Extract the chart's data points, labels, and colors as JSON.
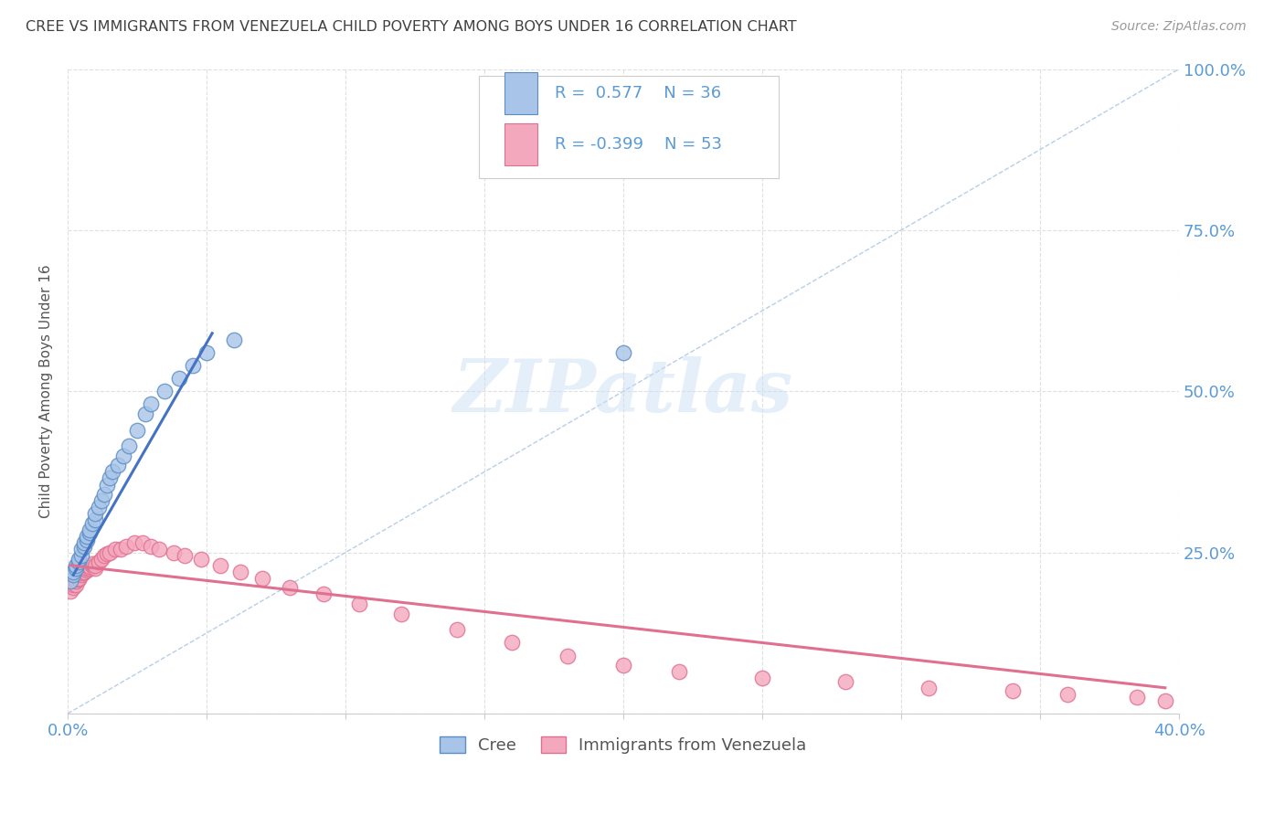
{
  "title": "CREE VS IMMIGRANTS FROM VENEZUELA CHILD POVERTY AMONG BOYS UNDER 16 CORRELATION CHART",
  "source": "Source: ZipAtlas.com",
  "ylabel": "Child Poverty Among Boys Under 16",
  "xlim": [
    0.0,
    0.4
  ],
  "ylim": [
    0.0,
    1.0
  ],
  "legend_label1": "Cree",
  "legend_label2": "Immigrants from Venezuela",
  "legend_R1": "R =  0.577",
  "legend_N1": "N = 36",
  "legend_R2": "R = -0.399",
  "legend_N2": "N = 53",
  "color_cree_fill": "#a8c4e8",
  "color_cree_edge": "#5b8ec4",
  "color_venezuela_fill": "#f4a8be",
  "color_venezuela_edge": "#e07090",
  "color_line_cree": "#4472c4",
  "color_line_venezuela": "#e07090",
  "color_diagonal": "#b0c8e8",
  "color_right_ticks": "#5b9bd5",
  "color_bottom_ticks": "#5b9bd5",
  "color_title": "#404040",
  "watermark_text": "ZIPatlas",
  "watermark_color": "#cce0f5",
  "cree_x": [
    0.001,
    0.002,
    0.002,
    0.003,
    0.003,
    0.004,
    0.004,
    0.005,
    0.005,
    0.006,
    0.006,
    0.007,
    0.007,
    0.008,
    0.008,
    0.009,
    0.01,
    0.01,
    0.011,
    0.012,
    0.013,
    0.014,
    0.015,
    0.016,
    0.018,
    0.02,
    0.022,
    0.025,
    0.028,
    0.03,
    0.035,
    0.04,
    0.045,
    0.05,
    0.06,
    0.2
  ],
  "cree_y": [
    0.205,
    0.215,
    0.22,
    0.225,
    0.23,
    0.235,
    0.24,
    0.245,
    0.255,
    0.26,
    0.265,
    0.27,
    0.275,
    0.28,
    0.285,
    0.295,
    0.3,
    0.31,
    0.32,
    0.33,
    0.34,
    0.355,
    0.365,
    0.375,
    0.385,
    0.4,
    0.415,
    0.44,
    0.465,
    0.48,
    0.5,
    0.52,
    0.54,
    0.56,
    0.58,
    0.56
  ],
  "cree_line_x": [
    0.002,
    0.052
  ],
  "cree_line_y": [
    0.215,
    0.59
  ],
  "venezuela_x": [
    0.001,
    0.002,
    0.002,
    0.003,
    0.003,
    0.004,
    0.004,
    0.005,
    0.005,
    0.006,
    0.006,
    0.007,
    0.007,
    0.008,
    0.008,
    0.009,
    0.009,
    0.01,
    0.01,
    0.011,
    0.012,
    0.013,
    0.014,
    0.015,
    0.017,
    0.019,
    0.021,
    0.024,
    0.027,
    0.03,
    0.033,
    0.038,
    0.042,
    0.048,
    0.055,
    0.062,
    0.07,
    0.08,
    0.092,
    0.105,
    0.12,
    0.14,
    0.16,
    0.18,
    0.2,
    0.22,
    0.25,
    0.28,
    0.31,
    0.34,
    0.36,
    0.385,
    0.395
  ],
  "venezuela_y": [
    0.19,
    0.195,
    0.2,
    0.2,
    0.205,
    0.208,
    0.21,
    0.215,
    0.218,
    0.22,
    0.22,
    0.222,
    0.225,
    0.225,
    0.228,
    0.23,
    0.232,
    0.225,
    0.23,
    0.235,
    0.24,
    0.245,
    0.248,
    0.25,
    0.255,
    0.255,
    0.26,
    0.265,
    0.265,
    0.26,
    0.255,
    0.25,
    0.245,
    0.24,
    0.23,
    0.22,
    0.21,
    0.195,
    0.185,
    0.17,
    0.155,
    0.13,
    0.11,
    0.09,
    0.075,
    0.065,
    0.055,
    0.05,
    0.04,
    0.035,
    0.03,
    0.025,
    0.02
  ],
  "venezuela_line_x": [
    0.001,
    0.395
  ],
  "venezuela_line_y": [
    0.23,
    0.04
  ]
}
